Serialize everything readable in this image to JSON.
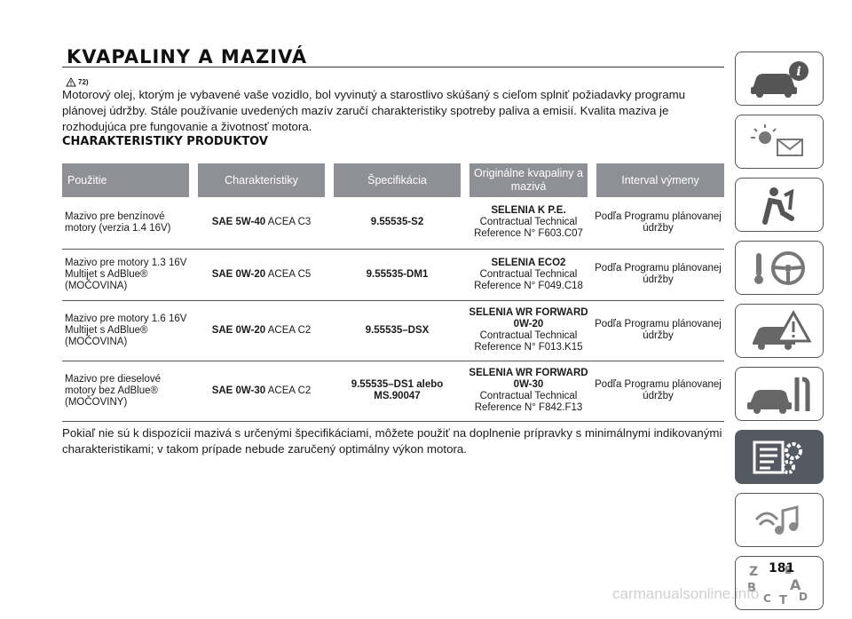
{
  "page": {
    "title": "KVAPALINY A MAZIVÁ",
    "ref_mark": "72)",
    "intro": "Motorový olej, ktorým je vybavené vaše vozidlo, bol vyvinutý a starostlivo skúšaný s cieľom splniť požiadavky programu plánovej údržby. Stále používanie uvedených mazív zaručí charakteristiky spotreby paliva a emisií. Kvalita maziva je rozhodujúca pre fungovanie a životnosť motora.",
    "section_title": "CHARAKTERISTIKY PRODUKTOV",
    "footnote": "Pokiaľ nie sú k dispozícii mazivá s určenými špecifikáciami, môžete použiť na doplnenie prípravky s minimálnymi indikovanými charakteristikami; v takom prípade nebude zaručený optimálny výkon motora.",
    "page_number": "181",
    "watermark": "carmanualsonline.info"
  },
  "table": {
    "headers": [
      "Použitie",
      "Charakteristiky",
      "Špecifikácia",
      "Originálne kvapaliny a mazivá",
      "Interval výmeny"
    ],
    "rows": [
      {
        "use": "Mazivo pre benzínové motory (verzia 1.4 16V)",
        "grade": "SAE 5W-40",
        "acea": "ACEA C3",
        "spec": "9.55535-S2",
        "product": "SELENIA K P.E.",
        "product_ref": "Contractual Technical Reference N° F603.C07",
        "interval": "Podľa Programu plánovanej údržby"
      },
      {
        "use": "Mazivo pre motory 1.3 16V Multijet s AdBlue® (MOČOVINA)",
        "grade": "SAE 0W-20",
        "acea": "ACEA C5",
        "spec": "9.55535-DM1",
        "product": "SELENIA ECO2",
        "product_ref": "Contractual Technical Reference N° F049.C18",
        "interval": "Podľa Programu plánovanej údržby"
      },
      {
        "use": "Mazivo pre motory 1.6 16V Multijet s AdBlue® (MOČOVINA)",
        "grade": "SAE 0W-20",
        "acea": "ACEA C2",
        "spec": "9.55535–DSX",
        "product": "SELENIA WR FORWARD 0W-20",
        "product_ref": "Contractual Technical Reference N° F013.K15",
        "interval": "Podľa Programu plánovanej údržby"
      },
      {
        "use": "Mazivo pre dieselové motory bez AdBlue® (MOČOVINY)",
        "grade": "SAE 0W-30",
        "acea": "ACEA C2",
        "spec": "9.55535–DS1 alebo MS.90047",
        "product": "SELENIA WR FORWARD 0W-30",
        "product_ref": "Contractual Technical Reference N° F842.F13",
        "interval": "Podľa Programu plánovanej údržby"
      }
    ]
  },
  "sidebar": {
    "tabs": [
      {
        "icon": "car-info-icon",
        "active": false
      },
      {
        "icon": "warning-lights-icon",
        "active": false
      },
      {
        "icon": "safety-airbag-icon",
        "active": false
      },
      {
        "icon": "start-driving-icon",
        "active": false
      },
      {
        "icon": "emergency-icon",
        "active": false
      },
      {
        "icon": "maintenance-icon",
        "active": false
      },
      {
        "icon": "technical-data-icon",
        "active": true
      },
      {
        "icon": "multimedia-icon",
        "active": false
      },
      {
        "icon": "index-icon",
        "active": false
      }
    ]
  }
}
